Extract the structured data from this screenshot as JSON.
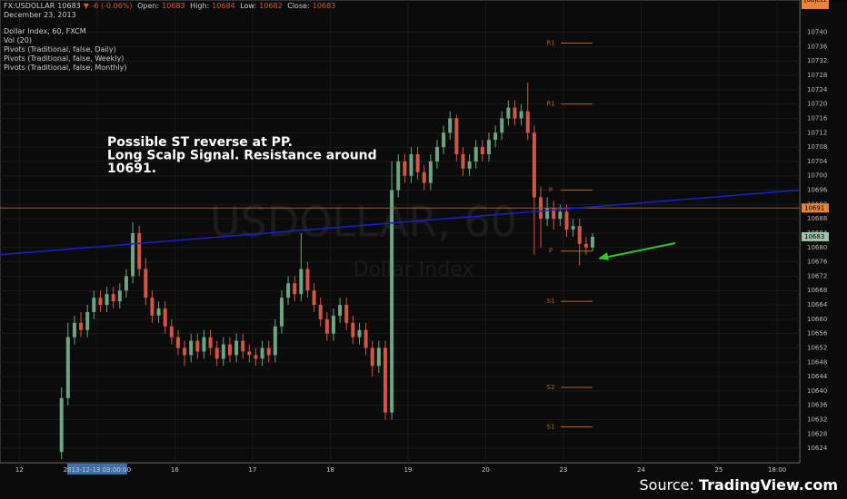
{
  "header": {
    "symbol": "FX:USDOLLAR",
    "last": "10683",
    "change": "▼ -6 (-0.06%)",
    "open_label": "Open:",
    "open": "10683",
    "high_label": "High:",
    "high": "10684",
    "low_label": "Low:",
    "low": "10682",
    "close_label": "Close:",
    "close": "10683",
    "date": "December 23, 2013"
  },
  "legend": [
    "Dollar Index, 60, FXCM",
    "Vol (20)",
    "Pivots (Traditional, false, Daily)",
    "Pivots (Traditional, false, Weekly)",
    "Pivots (Traditional, false, Monthly)"
  ],
  "footer": {
    "prefix": "Source:",
    "site": "TradingView.com"
  },
  "chart_data": {
    "type": "candlestick",
    "watermark": "USDOLLAR, 60",
    "watermark_sub": "Dollar Index",
    "annotation": [
      "Possible ST reverse at PP.",
      "Long Scalp Signal. Resistance around",
      "10691."
    ],
    "up_color": "#6ba583",
    "down_color": "#d75442",
    "xlim": [
      0,
      247
    ],
    "ylim": [
      10620,
      10749
    ],
    "xticks": [
      {
        "value": 6,
        "label": "12"
      },
      {
        "value": 30,
        "label": "2013-12-13 03:00:00"
      },
      {
        "value": 54,
        "label": "16"
      },
      {
        "value": 78,
        "label": "17"
      },
      {
        "value": 102,
        "label": "18"
      },
      {
        "value": 126,
        "label": "19"
      },
      {
        "value": 150,
        "label": "20"
      },
      {
        "value": 174,
        "label": "23"
      },
      {
        "value": 198,
        "label": "24"
      },
      {
        "value": 222,
        "label": "25"
      },
      {
        "value": 240,
        "label": "18:00"
      }
    ],
    "yticks": [
      10624,
      10628,
      10632,
      10636,
      10640,
      10644,
      10648,
      10652,
      10656,
      10660,
      10664,
      10668,
      10672,
      10676,
      10680,
      10684,
      10688,
      10692,
      10696,
      10700,
      10704,
      10708,
      10712,
      10716,
      10720,
      10724,
      10728,
      10732,
      10736,
      10740
    ],
    "trendline": {
      "color": "#1c1cd0",
      "x": [
        0,
        247
      ],
      "y": [
        10678,
        10696
      ]
    },
    "hline": {
      "color": "#a0622c",
      "value": 10691
    },
    "pivots": [
      {
        "label": "R1",
        "value": 10737
      },
      {
        "label": "R1",
        "value": 10720
      },
      {
        "label": "P",
        "value": 10696
      },
      {
        "label": "P",
        "value": 10679
      },
      {
        "label": "S1",
        "value": 10665
      },
      {
        "label": "S2",
        "value": 10641
      },
      {
        "label": "S1",
        "value": 10630
      }
    ],
    "candles": [
      {
        "x": 19,
        "o": 10623,
        "h": 10641,
        "l": 10621,
        "c": 10638
      },
      {
        "x": 21,
        "o": 10638,
        "h": 10659,
        "l": 10636,
        "c": 10655
      },
      {
        "x": 23,
        "o": 10655,
        "h": 10661,
        "l": 10653,
        "c": 10659
      },
      {
        "x": 25,
        "o": 10659,
        "h": 10662,
        "l": 10655,
        "c": 10657
      },
      {
        "x": 27,
        "o": 10657,
        "h": 10664,
        "l": 10655,
        "c": 10662
      },
      {
        "x": 29,
        "o": 10662,
        "h": 10668,
        "l": 10660,
        "c": 10666
      },
      {
        "x": 31,
        "o": 10666,
        "h": 10668,
        "l": 10662,
        "c": 10664
      },
      {
        "x": 33,
        "o": 10664,
        "h": 10669,
        "l": 10662,
        "c": 10667
      },
      {
        "x": 35,
        "o": 10667,
        "h": 10669,
        "l": 10663,
        "c": 10665
      },
      {
        "x": 37,
        "o": 10665,
        "h": 10670,
        "l": 10663,
        "c": 10668
      },
      {
        "x": 39,
        "o": 10668,
        "h": 10674,
        "l": 10666,
        "c": 10672
      },
      {
        "x": 41,
        "o": 10672,
        "h": 10687,
        "l": 10670,
        "c": 10684
      },
      {
        "x": 43,
        "o": 10684,
        "h": 10686,
        "l": 10672,
        "c": 10674
      },
      {
        "x": 45,
        "o": 10674,
        "h": 10677,
        "l": 10664,
        "c": 10666
      },
      {
        "x": 47,
        "o": 10666,
        "h": 10668,
        "l": 10659,
        "c": 10661
      },
      {
        "x": 49,
        "o": 10661,
        "h": 10665,
        "l": 10659,
        "c": 10663
      },
      {
        "x": 51,
        "o": 10663,
        "h": 10665,
        "l": 10656,
        "c": 10658
      },
      {
        "x": 53,
        "o": 10658,
        "h": 10660,
        "l": 10653,
        "c": 10655
      },
      {
        "x": 55,
        "o": 10655,
        "h": 10657,
        "l": 10650,
        "c": 10652
      },
      {
        "x": 57,
        "o": 10652,
        "h": 10654,
        "l": 10647,
        "c": 10650
      },
      {
        "x": 59,
        "o": 10650,
        "h": 10656,
        "l": 10648,
        "c": 10654
      },
      {
        "x": 61,
        "o": 10654,
        "h": 10656,
        "l": 10649,
        "c": 10651
      },
      {
        "x": 63,
        "o": 10651,
        "h": 10657,
        "l": 10649,
        "c": 10655
      },
      {
        "x": 65,
        "o": 10655,
        "h": 10657,
        "l": 10650,
        "c": 10652
      },
      {
        "x": 67,
        "o": 10652,
        "h": 10654,
        "l": 10647,
        "c": 10649
      },
      {
        "x": 69,
        "o": 10649,
        "h": 10655,
        "l": 10647,
        "c": 10653
      },
      {
        "x": 71,
        "o": 10653,
        "h": 10655,
        "l": 10648,
        "c": 10650
      },
      {
        "x": 73,
        "o": 10650,
        "h": 10656,
        "l": 10648,
        "c": 10654
      },
      {
        "x": 75,
        "o": 10654,
        "h": 10656,
        "l": 10649,
        "c": 10651
      },
      {
        "x": 77,
        "o": 10651,
        "h": 10653,
        "l": 10648,
        "c": 10650
      },
      {
        "x": 79,
        "o": 10650,
        "h": 10652,
        "l": 10647,
        "c": 10649
      },
      {
        "x": 81,
        "o": 10649,
        "h": 10654,
        "l": 10647,
        "c": 10652
      },
      {
        "x": 83,
        "o": 10652,
        "h": 10654,
        "l": 10648,
        "c": 10650
      },
      {
        "x": 85,
        "o": 10650,
        "h": 10660,
        "l": 10648,
        "c": 10658
      },
      {
        "x": 87,
        "o": 10658,
        "h": 10668,
        "l": 10656,
        "c": 10666
      },
      {
        "x": 89,
        "o": 10666,
        "h": 10672,
        "l": 10664,
        "c": 10670
      },
      {
        "x": 91,
        "o": 10670,
        "h": 10672,
        "l": 10665,
        "c": 10667
      },
      {
        "x": 93,
        "o": 10667,
        "h": 10684,
        "l": 10665,
        "c": 10674
      },
      {
        "x": 95,
        "o": 10674,
        "h": 10676,
        "l": 10666,
        "c": 10668
      },
      {
        "x": 97,
        "o": 10668,
        "h": 10670,
        "l": 10662,
        "c": 10664
      },
      {
        "x": 99,
        "o": 10664,
        "h": 10666,
        "l": 10658,
        "c": 10660
      },
      {
        "x": 101,
        "o": 10660,
        "h": 10662,
        "l": 10654,
        "c": 10656
      },
      {
        "x": 103,
        "o": 10656,
        "h": 10663,
        "l": 10654,
        "c": 10661
      },
      {
        "x": 105,
        "o": 10661,
        "h": 10666,
        "l": 10659,
        "c": 10664
      },
      {
        "x": 107,
        "o": 10664,
        "h": 10666,
        "l": 10657,
        "c": 10659
      },
      {
        "x": 109,
        "o": 10659,
        "h": 10661,
        "l": 10653,
        "c": 10655
      },
      {
        "x": 111,
        "o": 10655,
        "h": 10659,
        "l": 10653,
        "c": 10657
      },
      {
        "x": 113,
        "o": 10657,
        "h": 10659,
        "l": 10650,
        "c": 10652
      },
      {
        "x": 115,
        "o": 10652,
        "h": 10654,
        "l": 10644,
        "c": 10647
      },
      {
        "x": 117,
        "o": 10647,
        "h": 10654,
        "l": 10645,
        "c": 10652
      },
      {
        "x": 119,
        "o": 10652,
        "h": 10654,
        "l": 10632,
        "c": 10634
      },
      {
        "x": 121,
        "o": 10634,
        "h": 10704,
        "l": 10632,
        "c": 10696
      },
      {
        "x": 123,
        "o": 10696,
        "h": 10706,
        "l": 10694,
        "c": 10704
      },
      {
        "x": 125,
        "o": 10704,
        "h": 10706,
        "l": 10698,
        "c": 10700
      },
      {
        "x": 127,
        "o": 10700,
        "h": 10708,
        "l": 10698,
        "c": 10706
      },
      {
        "x": 129,
        "o": 10706,
        "h": 10708,
        "l": 10699,
        "c": 10701
      },
      {
        "x": 131,
        "o": 10701,
        "h": 10703,
        "l": 10696,
        "c": 10698
      },
      {
        "x": 133,
        "o": 10698,
        "h": 10706,
        "l": 10696,
        "c": 10704
      },
      {
        "x": 135,
        "o": 10704,
        "h": 10710,
        "l": 10702,
        "c": 10708
      },
      {
        "x": 137,
        "o": 10708,
        "h": 10714,
        "l": 10706,
        "c": 10712
      },
      {
        "x": 139,
        "o": 10712,
        "h": 10718,
        "l": 10710,
        "c": 10716
      },
      {
        "x": 141,
        "o": 10716,
        "h": 10717,
        "l": 10704,
        "c": 10706
      },
      {
        "x": 143,
        "o": 10706,
        "h": 10708,
        "l": 10700,
        "c": 10702
      },
      {
        "x": 145,
        "o": 10702,
        "h": 10706,
        "l": 10700,
        "c": 10704
      },
      {
        "x": 147,
        "o": 10704,
        "h": 10710,
        "l": 10702,
        "c": 10708
      },
      {
        "x": 149,
        "o": 10708,
        "h": 10710,
        "l": 10704,
        "c": 10706
      },
      {
        "x": 151,
        "o": 10706,
        "h": 10712,
        "l": 10704,
        "c": 10710
      },
      {
        "x": 153,
        "o": 10710,
        "h": 10714,
        "l": 10708,
        "c": 10712
      },
      {
        "x": 155,
        "o": 10712,
        "h": 10718,
        "l": 10710,
        "c": 10716
      },
      {
        "x": 157,
        "o": 10716,
        "h": 10721,
        "l": 10714,
        "c": 10719
      },
      {
        "x": 159,
        "o": 10719,
        "h": 10721,
        "l": 10714,
        "c": 10716
      },
      {
        "x": 161,
        "o": 10716,
        "h": 10720,
        "l": 10714,
        "c": 10718
      },
      {
        "x": 163,
        "o": 10718,
        "h": 10726,
        "l": 10710,
        "c": 10712
      },
      {
        "x": 165,
        "o": 10712,
        "h": 10714,
        "l": 10678,
        "c": 10694
      },
      {
        "x": 167,
        "o": 10694,
        "h": 10697,
        "l": 10680,
        "c": 10688
      },
      {
        "x": 169,
        "o": 10688,
        "h": 10694,
        "l": 10686,
        "c": 10691
      },
      {
        "x": 171,
        "o": 10691,
        "h": 10693,
        "l": 10685,
        "c": 10688
      },
      {
        "x": 173,
        "o": 10688,
        "h": 10692,
        "l": 10686,
        "c": 10690
      },
      {
        "x": 175,
        "o": 10690,
        "h": 10692,
        "l": 10683,
        "c": 10685
      },
      {
        "x": 177,
        "o": 10685,
        "h": 10688,
        "l": 10683,
        "c": 10686
      },
      {
        "x": 179,
        "o": 10686,
        "h": 10688,
        "l": 10675,
        "c": 10681
      },
      {
        "x": 181,
        "o": 10681,
        "h": 10683,
        "l": 10678,
        "c": 10680
      },
      {
        "x": 183,
        "o": 10680,
        "h": 10684,
        "l": 10679,
        "c": 10683
      }
    ]
  }
}
